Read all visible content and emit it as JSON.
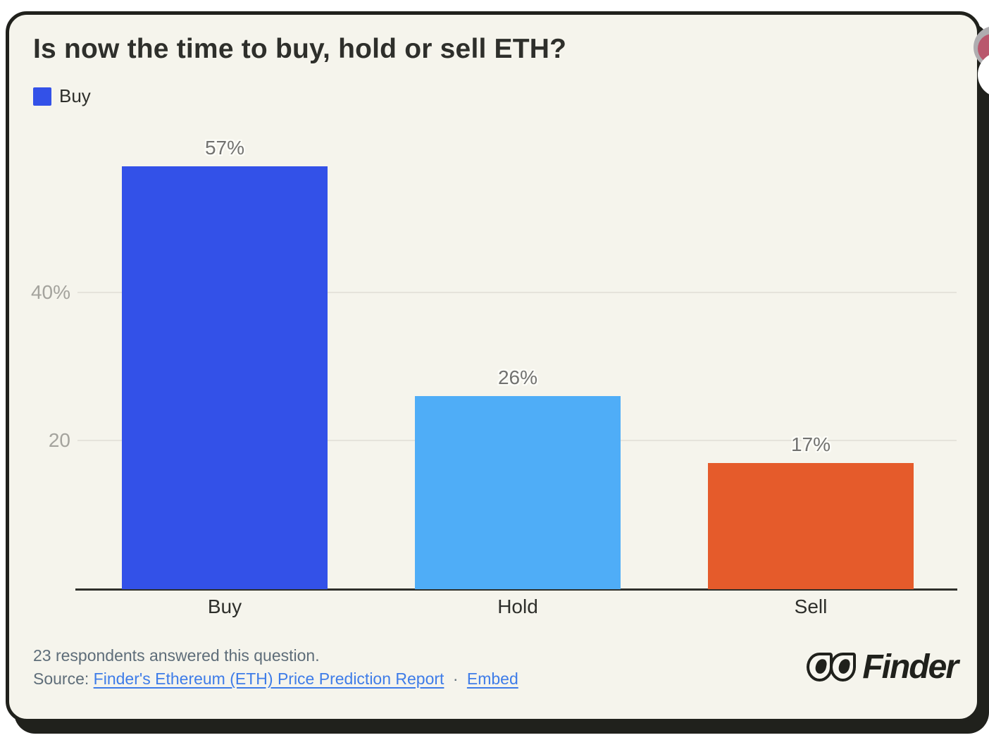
{
  "window": {
    "background": "#FFFFFF"
  },
  "card": {
    "background": "#F5F4EC",
    "border_color": "#20211C"
  },
  "chart_data": {
    "type": "bar",
    "title": "Is now the time to buy, hold or sell ETH?",
    "legend": [
      {
        "label": "Buy",
        "color": "#3351E8"
      }
    ],
    "legend_position": "top-left",
    "categories": [
      "Buy",
      "Hold",
      "Sell"
    ],
    "values": [
      57,
      26,
      17
    ],
    "value_labels": [
      "57%",
      "26%",
      "17%"
    ],
    "bar_colors": [
      "#3351E8",
      "#4FADF7",
      "#E55B2B"
    ],
    "yticks": [
      {
        "value": 40,
        "label": "40%"
      },
      {
        "value": 20,
        "label": "20"
      }
    ],
    "ylim": [
      0,
      60
    ],
    "grid": "horizontal-lines-at-yticks",
    "xlabel": "",
    "ylabel": ""
  },
  "footer": {
    "note": "23 respondents answered this question.",
    "source_prefix": "Source:",
    "source_link_label": "Finder's Ethereum (ETH) Price Prediction Report",
    "separator": "·",
    "embed_link_label": "Embed",
    "link_color": "#3E7CE8"
  },
  "brand": {
    "name": "Finder"
  }
}
